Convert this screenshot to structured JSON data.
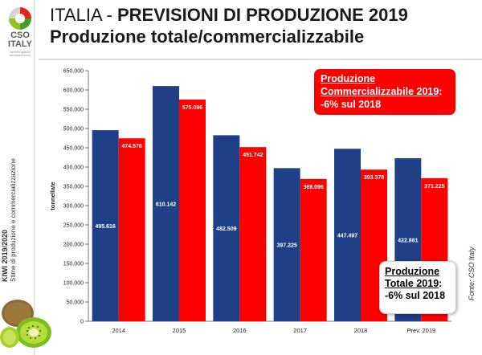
{
  "logo": {
    "name": "CSO ITALY",
    "subtitle": "CENTRO SERVIZI ORTOFRUTTICOLI"
  },
  "side_caption": {
    "line1": "KIWI 2019/2020",
    "line2": "Stime di produzione e commercializzazione"
  },
  "title": {
    "prefix": "ITALIA - ",
    "bold": "PREVISIONI DI PRODUZIONE 2019",
    "line2": "Produzione totale/commercializzabile"
  },
  "callout_commercial": {
    "line1": "Produzione",
    "line2": "Commercializzabile 2019",
    "line2_suffix": ":",
    "line3": "-6% sul 2018"
  },
  "callout_total": {
    "line1": "Produzione",
    "line2": "Totale 2019",
    "line2_suffix": ":",
    "line3": "-6% sul 2018"
  },
  "source": "Fonte: CSO Italy",
  "colors": {
    "total": "#1f3f86",
    "commercial": "#ff0000",
    "callout": "#ff0000"
  },
  "chart_data": {
    "type": "bar",
    "categories": [
      "2014",
      "2015",
      "2016",
      "2017",
      "2018",
      "Prev. 2019"
    ],
    "series": [
      {
        "values": [
          495616,
          610142,
          482509,
          397225,
          447497,
          422861
        ],
        "labels": [
          "495.616",
          "610.142",
          "482.509",
          "397.225",
          "447.497",
          "422.861"
        ]
      },
      {
        "values": [
          474578,
          575096,
          451742,
          369096,
          393378,
          371225
        ],
        "labels": [
          "474.578",
          "575.096",
          "451.742",
          "369.096",
          "393.378",
          "371.225"
        ]
      }
    ],
    "ylabel": "tonnellate",
    "ylim": [
      0,
      650000
    ],
    "yticks": [
      "0",
      "50.000",
      "100.000",
      "150.000",
      "200.000",
      "250.000",
      "300.000",
      "350.000",
      "400.000",
      "450.000",
      "500.000",
      "550.000",
      "600.000",
      "650.000"
    ],
    "grid": false,
    "legend": "none"
  }
}
